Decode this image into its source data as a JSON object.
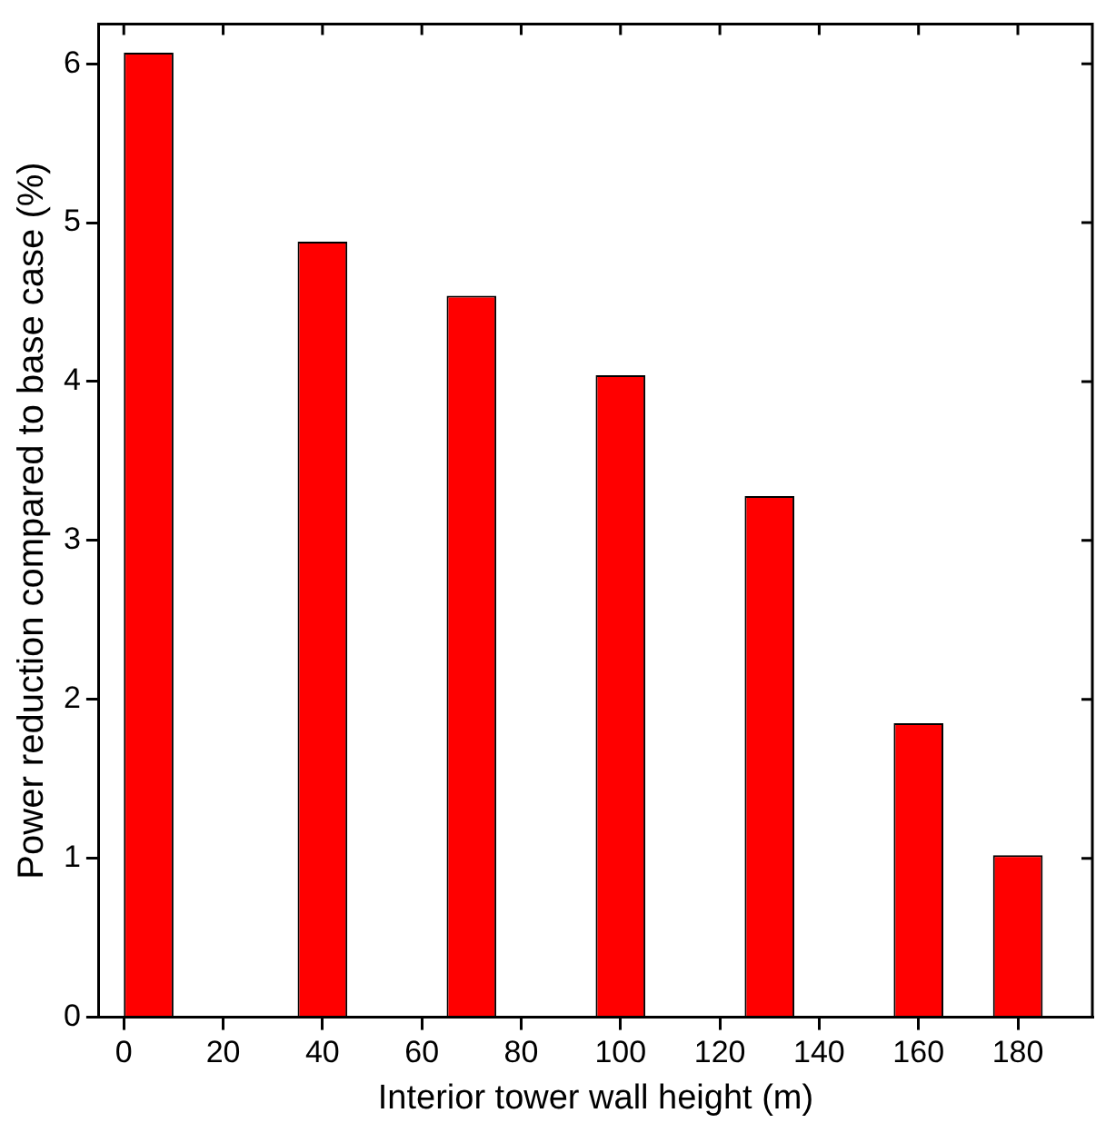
{
  "chart_data": {
    "type": "bar",
    "xlabel": "Interior tower wall height (m)",
    "ylabel": "Power reduction compared to base case (%)",
    "x": [
      5,
      40,
      70,
      100,
      130,
      160,
      180
    ],
    "values": [
      6.07,
      4.88,
      4.54,
      4.04,
      3.28,
      1.85,
      1.02
    ],
    "color": "#ff0000",
    "xlim": [
      -5,
      195
    ],
    "ylim": [
      0,
      6.25
    ],
    "xticks": [
      0,
      20,
      40,
      60,
      80,
      100,
      120,
      140,
      160,
      180
    ],
    "yticks": [
      0,
      1,
      2,
      3,
      4,
      5,
      6
    ],
    "grid": false,
    "legend": false
  }
}
